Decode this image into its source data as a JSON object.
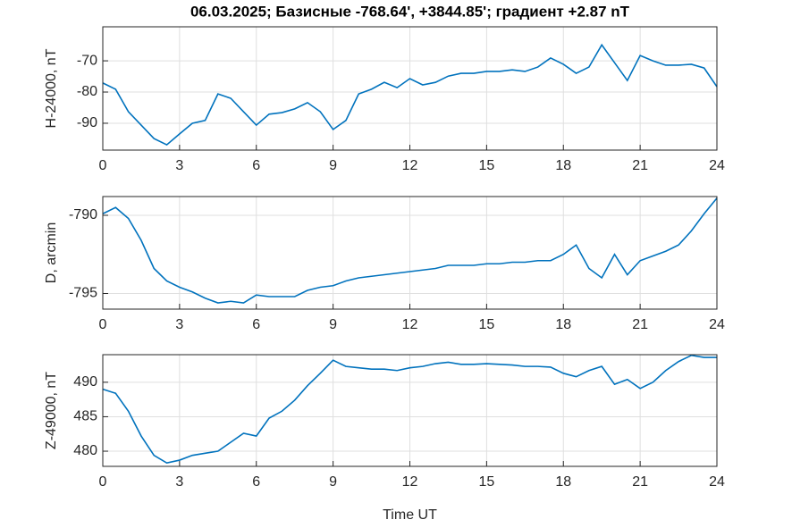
{
  "chart_data": [
    {
      "type": "line",
      "title": "06.03.2025;  Базисные  -768.64', +3844.85'; градиент +2.87 nT",
      "ylabel": "H-24000, nT",
      "x": [
        0,
        0.5,
        1,
        1.5,
        2,
        2.5,
        3,
        3.5,
        4,
        4.5,
        5,
        5.5,
        6,
        6.5,
        7,
        7.5,
        8,
        8.5,
        9,
        9.5,
        10,
        10.5,
        11,
        11.5,
        12,
        12.5,
        13,
        13.5,
        14,
        14.5,
        15,
        15.5,
        16,
        16.5,
        17,
        17.5,
        18,
        18.5,
        19,
        19.5,
        20,
        20.5,
        21,
        21.5,
        22,
        22.5,
        23,
        23.5,
        24
      ],
      "series": [
        {
          "color": "#0072bd",
          "values": [
            -77.1,
            -79.1,
            -86.3,
            -90.6,
            -94.9,
            -96.9,
            -93.4,
            -90,
            -89.1,
            -80.6,
            -82,
            -86.3,
            -90.6,
            -87.1,
            -86.6,
            -85.4,
            -83.4,
            -86.3,
            -92,
            -89.1,
            -80.6,
            -79.1,
            -76.9,
            -78.6,
            -75.7,
            -77.7,
            -76.9,
            -74.9,
            -74,
            -74,
            -73.4,
            -73.4,
            -72.9,
            -73.4,
            -72,
            -69.1,
            -71.1,
            -74,
            -72,
            -64.9,
            -70.6,
            -76.3,
            -68.3,
            -70,
            -71.4,
            -71.4,
            -71.1,
            -72.3,
            -78.3
          ]
        }
      ],
      "xlim": [
        0,
        24
      ],
      "xticks": [
        0,
        3,
        6,
        9,
        12,
        15,
        18,
        21,
        24
      ],
      "ylim": [
        -98.6,
        -59.1
      ],
      "yticks": [
        -90,
        -80,
        -70
      ],
      "grid": true
    },
    {
      "type": "line",
      "ylabel": "D, arcmin",
      "x": [
        0,
        0.5,
        1,
        1.5,
        2,
        2.5,
        3,
        3.5,
        4,
        4.5,
        5,
        5.5,
        6,
        6.5,
        7,
        7.5,
        8,
        8.5,
        9,
        9.5,
        10,
        10.5,
        11,
        11.5,
        12,
        12.5,
        13,
        13.5,
        14,
        14.5,
        15,
        15.5,
        16,
        16.5,
        17,
        17.5,
        18,
        18.5,
        19,
        19.5,
        20,
        20.5,
        21,
        21.5,
        22,
        22.5,
        23,
        23.5,
        24
      ],
      "series": [
        {
          "color": "#0072bd",
          "values": [
            -789.9,
            -789.5,
            -790.2,
            -791.6,
            -793.4,
            -794.2,
            -794.6,
            -794.9,
            -795.3,
            -795.6,
            -795.5,
            -795.6,
            -795.1,
            -795.2,
            -795.2,
            -795.2,
            -794.8,
            -794.6,
            -794.5,
            -794.2,
            -794,
            -793.9,
            -793.8,
            -793.7,
            -793.6,
            -793.5,
            -793.4,
            -793.2,
            -793.2,
            -793.2,
            -793.1,
            -793.1,
            -793,
            -793,
            -792.9,
            -792.9,
            -792.5,
            -791.9,
            -793.4,
            -794,
            -792.5,
            -793.8,
            -792.9,
            -792.6,
            -792.3,
            -791.9,
            -791,
            -789.9,
            -788.9
          ]
        }
      ],
      "xlim": [
        0,
        24
      ],
      "xticks": [
        0,
        3,
        6,
        9,
        12,
        15,
        18,
        21,
        24
      ],
      "ylim": [
        -796.0,
        -788.8
      ],
      "yticks": [
        -795,
        -790
      ],
      "grid": true
    },
    {
      "type": "line",
      "ylabel": "Z-49000, nT",
      "xlabel": "Time UT",
      "x": [
        0,
        0.5,
        1,
        1.5,
        2,
        2.5,
        3,
        3.5,
        4,
        4.5,
        5,
        5.5,
        6,
        6.5,
        7,
        7.5,
        8,
        8.5,
        9,
        9.5,
        10,
        10.5,
        11,
        11.5,
        12,
        12.5,
        13,
        13.5,
        14,
        14.5,
        15,
        15.5,
        16,
        16.5,
        17,
        17.5,
        18,
        18.5,
        19,
        19.5,
        20,
        20.5,
        21,
        21.5,
        22,
        22.5,
        23,
        23.5,
        24
      ],
      "series": [
        {
          "color": "#0072bd",
          "values": [
            489,
            488.4,
            485.8,
            482.2,
            479.4,
            478.3,
            478.7,
            479.4,
            479.7,
            480,
            481.3,
            482.6,
            482.2,
            484.8,
            485.8,
            487.4,
            489.5,
            491.3,
            493.2,
            492.3,
            492.1,
            491.9,
            491.9,
            491.7,
            492.1,
            492.3,
            492.7,
            492.9,
            492.6,
            492.6,
            492.7,
            492.6,
            492.5,
            492.3,
            492.3,
            492.2,
            491.3,
            490.8,
            491.7,
            492.3,
            489.7,
            490.4,
            489.1,
            490,
            491.7,
            493,
            493.9,
            493.6,
            493.6
          ]
        }
      ],
      "xlim": [
        0,
        24
      ],
      "xticks": [
        0,
        3,
        6,
        9,
        12,
        15,
        18,
        21,
        24
      ],
      "ylim": [
        477.8,
        494.0
      ],
      "yticks": [
        480,
        485,
        490
      ],
      "grid": true
    }
  ]
}
